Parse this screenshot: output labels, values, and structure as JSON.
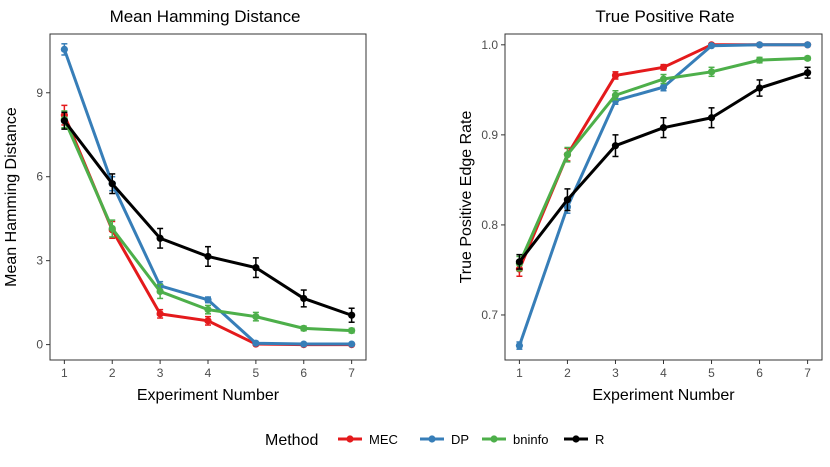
{
  "legend": {
    "title": "Method",
    "entries": [
      {
        "name": "MEC",
        "color": "#e41a1c"
      },
      {
        "name": "DP",
        "color": "#377eb8"
      },
      {
        "name": "bninfo",
        "color": "#4daf4a"
      },
      {
        "name": "R",
        "color": "#000000"
      }
    ]
  },
  "chart_data": [
    {
      "type": "line",
      "title": "Mean Hamming Distance",
      "xlabel": "Experiment Number",
      "ylabel": "Mean Hamming Distance",
      "x": [
        1,
        2,
        3,
        4,
        5,
        6,
        7
      ],
      "xlim": [
        0.7,
        7.3
      ],
      "ylim": [
        -0.55,
        11.1
      ],
      "yticks": [
        0,
        3,
        6,
        9
      ],
      "yticklabels": [
        "0",
        "3",
        "6",
        "9"
      ],
      "series": [
        {
          "name": "MEC",
          "color": "#e41a1c",
          "values": [
            8.2,
            4.1,
            1.1,
            0.85,
            0.02,
            0.0,
            0.0
          ],
          "err": [
            0.35,
            0.3,
            0.15,
            0.15,
            0.02,
            0.0,
            0.0
          ]
        },
        {
          "name": "DP",
          "color": "#377eb8",
          "values": [
            10.55,
            5.75,
            2.1,
            1.6,
            0.05,
            0.02,
            0.02
          ],
          "err": [
            0.2,
            0.25,
            0.15,
            0.1,
            0.03,
            0.02,
            0.02
          ]
        },
        {
          "name": "bninfo",
          "color": "#4daf4a",
          "values": [
            8.05,
            4.15,
            1.9,
            1.25,
            1.0,
            0.58,
            0.5
          ],
          "err": [
            0.3,
            0.3,
            0.25,
            0.15,
            0.15,
            0.08,
            0.08
          ]
        },
        {
          "name": "R",
          "color": "#000000",
          "values": [
            8.0,
            5.75,
            3.8,
            3.15,
            2.75,
            1.65,
            1.05
          ],
          "err": [
            0.3,
            0.35,
            0.35,
            0.35,
            0.35,
            0.3,
            0.25
          ]
        }
      ]
    },
    {
      "type": "line",
      "title": "True Positive Rate",
      "xlabel": "Experiment Number",
      "ylabel": "True Positive Edge Rate",
      "x": [
        1,
        2,
        3,
        4,
        5,
        6,
        7
      ],
      "xlim": [
        0.7,
        7.3
      ],
      "ylim": [
        0.65,
        1.012
      ],
      "yticks": [
        0.7,
        0.8,
        0.9,
        1.0
      ],
      "yticklabels": [
        "0.7",
        "0.8",
        "0.9",
        "1.0"
      ],
      "series": [
        {
          "name": "MEC",
          "color": "#e41a1c",
          "values": [
            0.751,
            0.878,
            0.966,
            0.975,
            1.0,
            1.0,
            1.0
          ],
          "err": [
            0.008,
            0.007,
            0.004,
            0.003,
            0.0,
            0.0,
            0.0
          ]
        },
        {
          "name": "DP",
          "color": "#377eb8",
          "values": [
            0.666,
            0.82,
            0.938,
            0.953,
            0.999,
            1.0,
            1.0
          ],
          "err": [
            0.004,
            0.007,
            0.004,
            0.004,
            0.001,
            0.001,
            0.001
          ]
        },
        {
          "name": "bninfo",
          "color": "#4daf4a",
          "values": [
            0.757,
            0.878,
            0.944,
            0.962,
            0.97,
            0.983,
            0.985
          ],
          "err": [
            0.008,
            0.008,
            0.005,
            0.005,
            0.005,
            0.003,
            0.002
          ]
        },
        {
          "name": "R",
          "color": "#000000",
          "values": [
            0.759,
            0.828,
            0.888,
            0.908,
            0.919,
            0.952,
            0.969
          ],
          "err": [
            0.008,
            0.012,
            0.012,
            0.011,
            0.011,
            0.009,
            0.006
          ]
        }
      ]
    }
  ]
}
